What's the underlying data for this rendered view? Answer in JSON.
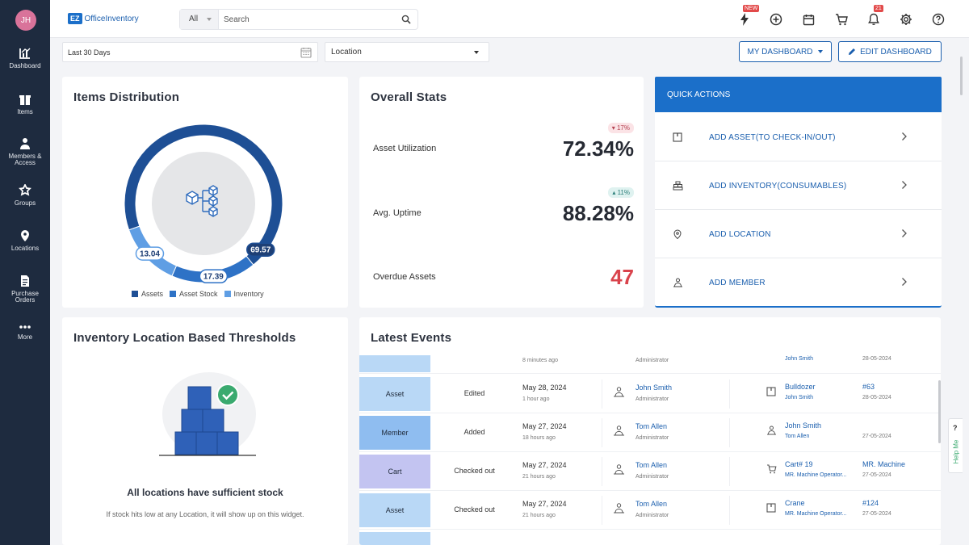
{
  "user": {
    "initials": "JH"
  },
  "sidebar": {
    "items": [
      {
        "label": "Dashboard",
        "icon": "dashboard-icon"
      },
      {
        "label": "Items",
        "icon": "gift-icon"
      },
      {
        "label": "Members &",
        "label2": "Access",
        "icon": "members-icon"
      },
      {
        "label": "Groups",
        "icon": "groups-icon"
      },
      {
        "label": "Locations",
        "icon": "location-pin-icon"
      },
      {
        "label": "Purchase",
        "label2": "Orders",
        "icon": "purchase-order-icon"
      },
      {
        "label": "More",
        "icon": "more-dots-icon"
      }
    ]
  },
  "header": {
    "logo_ez": "EZ",
    "logo_text": "OfficeInventory",
    "search": {
      "scope": "All",
      "placeholder": "Search"
    },
    "badges": {
      "new": "NEW",
      "notifications": "21"
    }
  },
  "filters": {
    "date_range": "Last 30 Days",
    "location": "Location"
  },
  "toolbar": {
    "my_dashboard": "MY DASHBOARD",
    "edit_dashboard": "EDIT DASHBOARD"
  },
  "items_distribution": {
    "title": "Items Distribution",
    "chart_data": {
      "type": "pie",
      "categories": [
        "Assets",
        "Asset Stock",
        "Inventory"
      ],
      "values": [
        69.57,
        17.39,
        13.04
      ],
      "colors": [
        "#1e4f95",
        "#2e72c6",
        "#5f9ee4"
      ]
    },
    "labels": [
      "69.57",
      "17.39",
      "13.04"
    ],
    "legend": [
      "Assets",
      "Asset Stock",
      "Inventory"
    ]
  },
  "overall_stats": {
    "title": "Overall Stats",
    "rows": [
      {
        "label": "Asset Utilization",
        "value": "72.34%",
        "change": "17%",
        "direction": "down"
      },
      {
        "label": "Avg. Uptime",
        "value": "88.28%",
        "change": "11%",
        "direction": "up"
      },
      {
        "label": "Overdue Assets",
        "value": "47"
      }
    ]
  },
  "quick_actions": {
    "title": "QUICK ACTIONS",
    "items": [
      {
        "label": "ADD ASSET(TO CHECK-IN/OUT)",
        "icon": "asset-tag-icon"
      },
      {
        "label": "ADD INVENTORY(CONSUMABLES)",
        "icon": "inventory-stack-icon"
      },
      {
        "label": "ADD LOCATION",
        "icon": "location-pin-icon"
      },
      {
        "label": "ADD MEMBER",
        "icon": "member-icon"
      }
    ]
  },
  "thresholds": {
    "title": "Inventory Location Based Thresholds",
    "message": "All locations have sufficient stock",
    "subtext": "If stock hits low at any Location, it will show up on this widget."
  },
  "latest_events": {
    "title": "Latest Events",
    "partial_top": {
      "ago": "8 minutes ago",
      "role": "Administrator",
      "by": "John Smith",
      "date": "28-05-2024"
    },
    "rows": [
      {
        "type": "Asset",
        "type_color": "#b9d8f6",
        "action": "Edited",
        "date": "May 28, 2024",
        "ago": "1 hour ago",
        "user": "John Smith",
        "role": "Administrator",
        "item": "Bulldozer",
        "item_by": "John Smith",
        "ref": "#63",
        "event_date": "28-05-2024",
        "item_icon": "asset-tag-icon"
      },
      {
        "type": "Member",
        "type_color": "#8fbdf0",
        "action": "Added",
        "date": "May 27, 2024",
        "ago": "18 hours ago",
        "user": "Tom Allen",
        "role": "Administrator",
        "item": "John Smith",
        "item_by": "Tom Allen",
        "ref": "",
        "event_date": "27-05-2024",
        "item_icon": "member-icon"
      },
      {
        "type": "Cart",
        "type_color": "#c3c4f1",
        "action": "Checked out",
        "date": "May 27, 2024",
        "ago": "21 hours ago",
        "user": "Tom Allen",
        "role": "Administrator",
        "item": "Cart# 19",
        "item_by": "MR. Machine Operator...",
        "ref": "MR. Machine",
        "event_date": "27-05-2024",
        "item_icon": "cart-icon"
      },
      {
        "type": "Asset",
        "type_color": "#b9d8f6",
        "action": "Checked out",
        "date": "May 27, 2024",
        "ago": "21 hours ago",
        "user": "Tom Allen",
        "role": "Administrator",
        "item": "Crane",
        "item_by": "MR. Machine Operator...",
        "ref": "#124",
        "event_date": "27-05-2024",
        "item_icon": "asset-tag-icon"
      }
    ]
  },
  "help": {
    "q": "?",
    "label": "Help Me"
  }
}
